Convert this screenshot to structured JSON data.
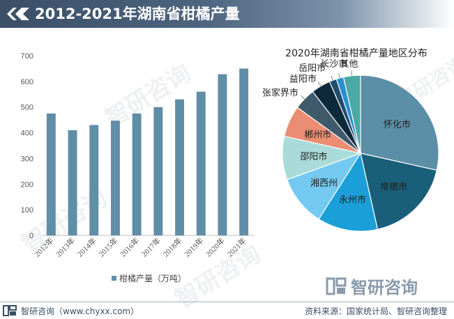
{
  "header": {
    "title": "2012-2021年湖南省柑橘产量"
  },
  "watermark": {
    "text": "智研咨询"
  },
  "colors": {
    "bar": "#5f8ea6",
    "axis": "#bfbfbf",
    "header_dark": "#3a4f66"
  },
  "chart_data": [
    {
      "type": "bar",
      "categories": [
        "2012年",
        "2013年",
        "2014年",
        "2015年",
        "2016年",
        "2017年",
        "2018年",
        "2019年",
        "2020年",
        "2021年"
      ],
      "series": [
        {
          "name": "柑橘产量（万吨）",
          "values": [
            475,
            410,
            430,
            447,
            475,
            500,
            530,
            560,
            628,
            650
          ]
        }
      ],
      "yticks": [
        "0",
        "100",
        "200",
        "300",
        "400",
        "500",
        "600",
        "700"
      ],
      "ylim": [
        0,
        700
      ],
      "legend": "柑橘产量（万吨）",
      "legend_position": "bottom"
    },
    {
      "type": "pie",
      "title": "2020年湖南省柑橘产量地区分布",
      "slices": [
        {
          "label": "怀化市",
          "value": 28.5,
          "color": "#5b8fa8"
        },
        {
          "label": "常德市",
          "value": 18.0,
          "color": "#1a5f7a"
        },
        {
          "label": "永州市",
          "value": 12.5,
          "color": "#1a9fd8"
        },
        {
          "label": "湘西州",
          "value": 10.5,
          "color": "#73c9ef"
        },
        {
          "label": "邵阳市",
          "value": 9.0,
          "color": "#a9dcd9"
        },
        {
          "label": "郴州市",
          "value": 6.5,
          "color": "#eb8d73"
        },
        {
          "label": "张家界市",
          "value": 4.5,
          "color": "#3f5b6b"
        },
        {
          "label": "益阳市",
          "value": 4.0,
          "color": "#0d2a3b"
        },
        {
          "label": "岳阳市",
          "value": 1.5,
          "color": "#1e4d6e"
        },
        {
          "label": "长沙市",
          "value": 1.5,
          "color": "#2a8fd0"
        },
        {
          "label": "其他",
          "value": 3.5,
          "color": "#4aa9a5"
        }
      ]
    }
  ],
  "brand": {
    "name": "智研咨询"
  },
  "footer": {
    "left": "智研咨询（www.chyxx.com）",
    "right": "资料来源：国家统计局、智研咨询整理"
  }
}
